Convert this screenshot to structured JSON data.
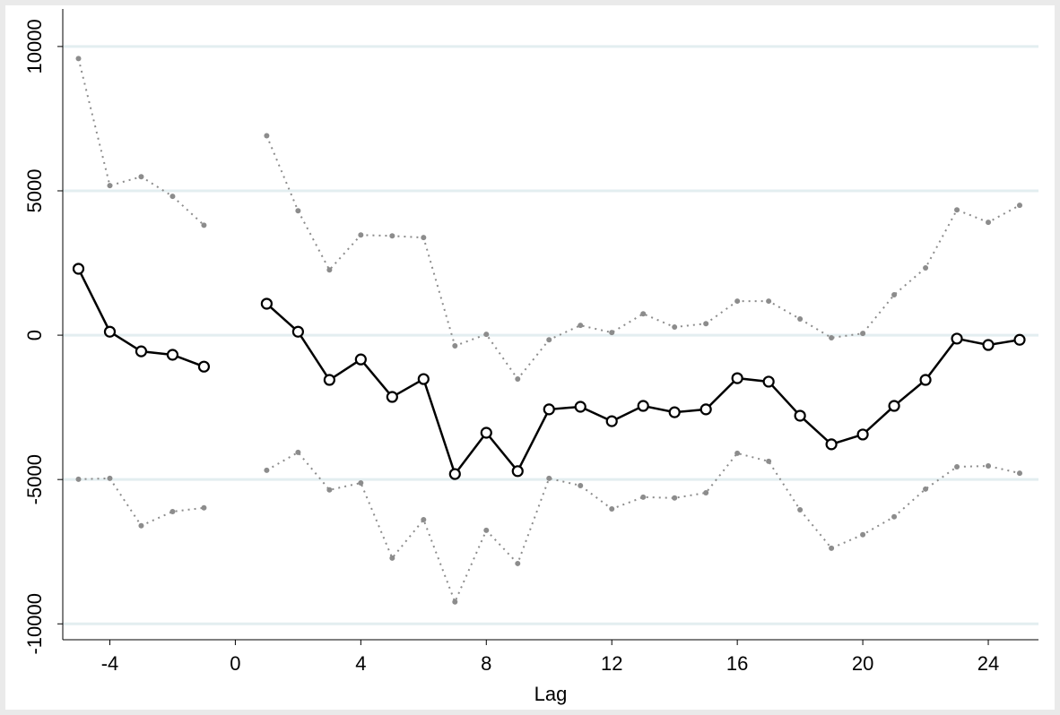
{
  "chart_data": {
    "type": "line",
    "x_label": "Lag",
    "x": [
      -5,
      -4,
      -3,
      -2,
      -1,
      0,
      1,
      2,
      3,
      4,
      5,
      6,
      7,
      8,
      9,
      10,
      11,
      12,
      13,
      14,
      15,
      16,
      17,
      18,
      19,
      20,
      21,
      22,
      23,
      24,
      25
    ],
    "series": [
      {
        "color": "#8c8c8c",
        "style": "dotted",
        "marker": "dot",
        "values": [
          9580,
          5180,
          5490,
          4810,
          3810,
          null,
          6910,
          4310,
          2260,
          3470,
          3440,
          3380,
          -370,
          30,
          -1520,
          -160,
          340,
          90,
          740,
          280,
          400,
          1180,
          1180,
          560,
          -90,
          60,
          1400,
          2330,
          4340,
          3910,
          4500
        ]
      },
      {
        "color": "#000000",
        "style": "solid",
        "marker": "circle",
        "values": [
          2300,
          120,
          -560,
          -680,
          -1090,
          null,
          1090,
          120,
          -1550,
          -840,
          -2140,
          -1520,
          -4810,
          -3380,
          -4710,
          -2570,
          -2480,
          -2980,
          -2450,
          -2670,
          -2570,
          -1490,
          -1610,
          -2790,
          -3780,
          -3440,
          -2450,
          -1550,
          -120,
          -340,
          -160
        ]
      },
      {
        "color": "#8c8c8c",
        "style": "dotted",
        "marker": "dot",
        "values": [
          -4990,
          -4960,
          -6600,
          -6110,
          -5980,
          null,
          -4680,
          -4060,
          -5360,
          -5120,
          -7720,
          -6390,
          -9240,
          -6760,
          -7910,
          -4960,
          -5210,
          -6020,
          -5610,
          -5640,
          -5460,
          -4090,
          -4370,
          -6050,
          -7380,
          -6910,
          -6290,
          -5330,
          -4560,
          -4530,
          -4780
        ]
      }
    ],
    "xlim": [
      -5.5,
      25.6
    ],
    "ylim": [
      -10550,
      11300
    ],
    "xticks": [
      -4,
      0,
      4,
      8,
      12,
      16,
      20,
      24
    ],
    "yticks": [
      -10000,
      -5000,
      0,
      5000,
      10000
    ],
    "grid": true
  }
}
